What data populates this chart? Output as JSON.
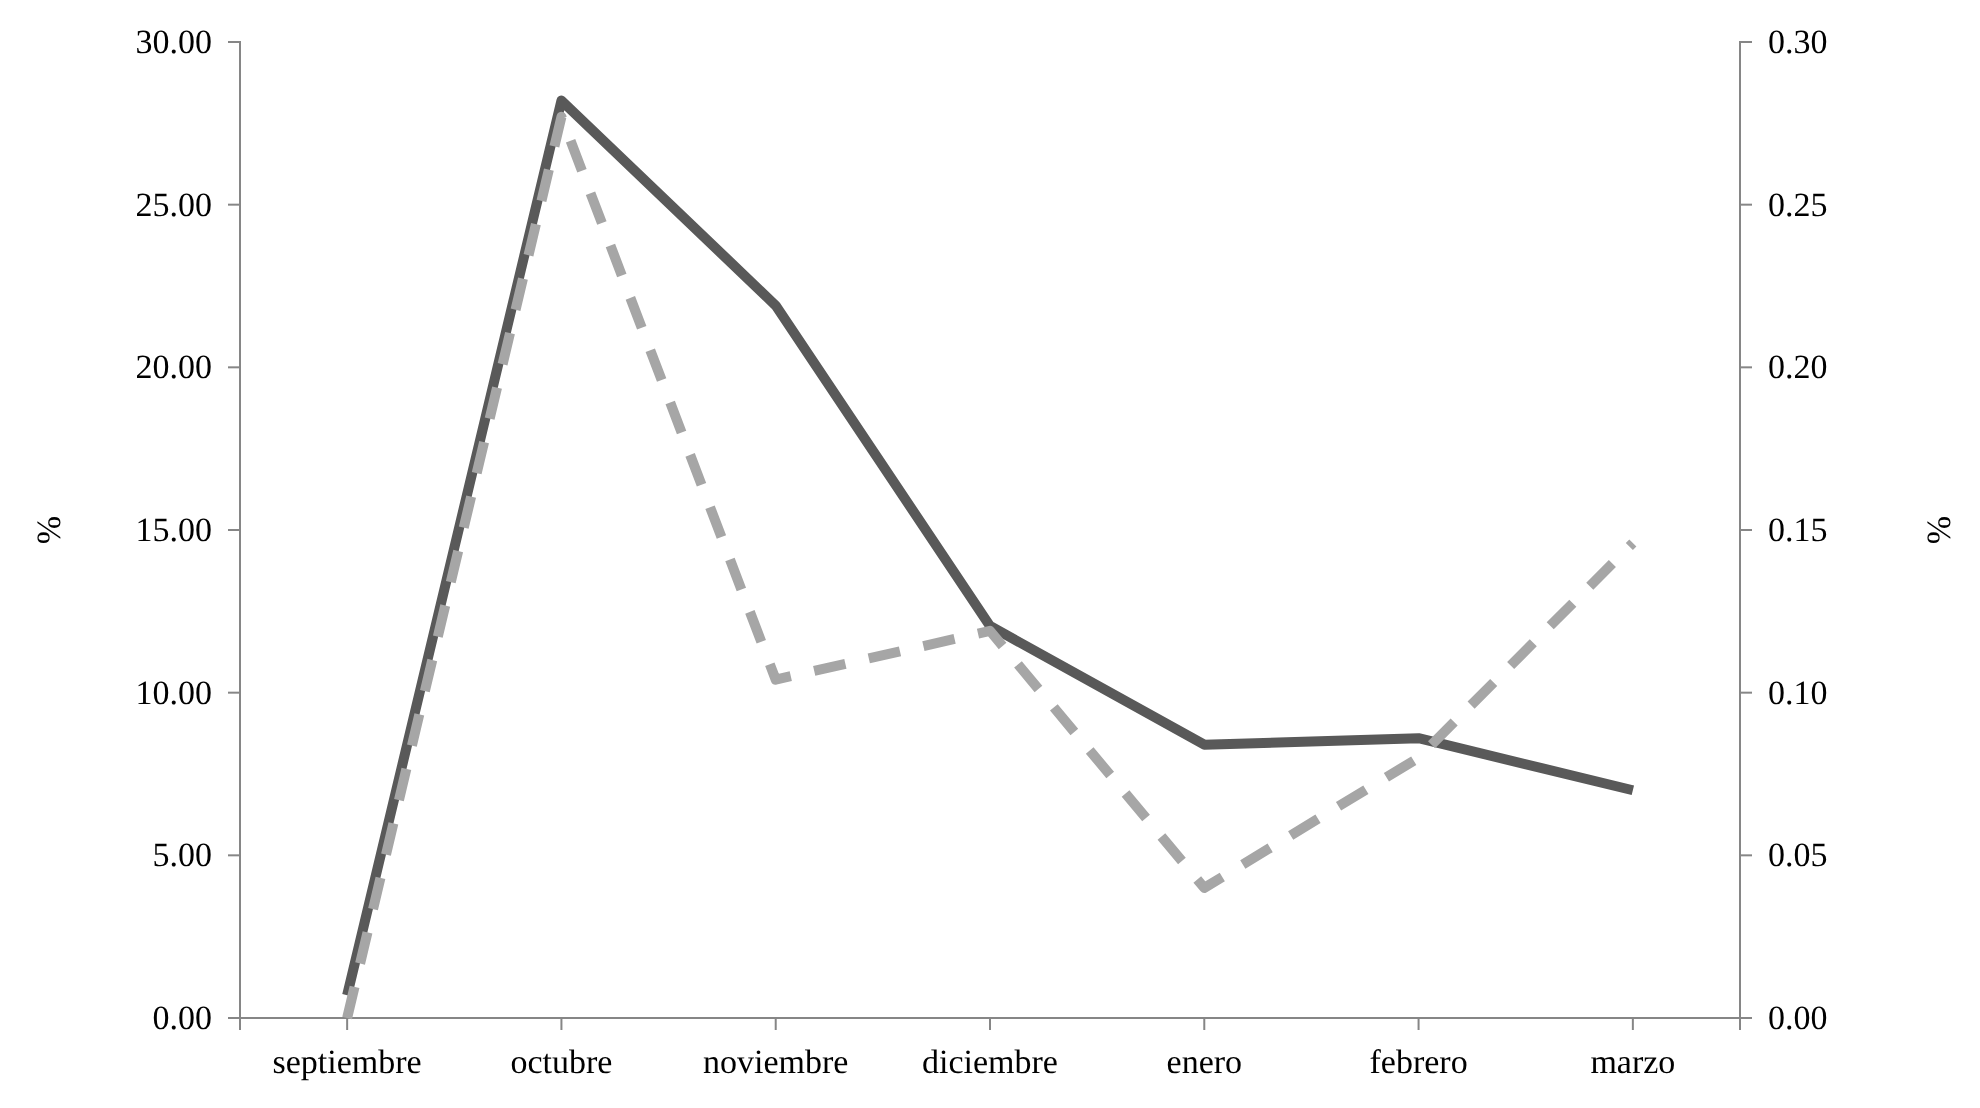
{
  "chart_data": {
    "type": "line",
    "categories": [
      "septiembre",
      "octubre",
      "noviembre",
      "diciembre",
      "enero",
      "febrero",
      "marzo"
    ],
    "series": [
      {
        "color": "#595959",
        "values": [
          0.7,
          28.2,
          21.9,
          12.05,
          8.4,
          8.6,
          7.0
        ],
        "line_style": "solid"
      },
      {
        "color": "#a6a6a6",
        "values": [
          0.0,
          0.277,
          0.104,
          0.119,
          0.04,
          0.08,
          0.146
        ],
        "axis": "y2",
        "line_style": "dashed"
      }
    ],
    "ylabel": "%",
    "y2label": "%",
    "ylim": [
      0,
      30
    ],
    "yticks": [
      {
        "value": 0,
        "label": "0.00"
      },
      {
        "value": 5,
        "label": "5.00"
      },
      {
        "value": 10,
        "label": "10.00"
      },
      {
        "value": 15,
        "label": "15.00"
      },
      {
        "value": 20,
        "label": "20.00"
      },
      {
        "value": 25,
        "label": "25.00"
      },
      {
        "value": 30,
        "label": "30.00"
      }
    ],
    "y2lim": [
      0,
      0.3
    ],
    "y2ticks": [
      {
        "value": 0,
        "label": "0.00"
      },
      {
        "value": 0.05,
        "label": "0.05"
      },
      {
        "value": 0.1,
        "label": "0.10"
      },
      {
        "value": 0.15,
        "label": "0.15"
      },
      {
        "value": 0.2,
        "label": "0.20"
      },
      {
        "value": 0.25,
        "label": "0.25"
      },
      {
        "value": 0.3,
        "label": "0.30"
      }
    ],
    "grid": false,
    "legend": false,
    "marker": "none"
  }
}
